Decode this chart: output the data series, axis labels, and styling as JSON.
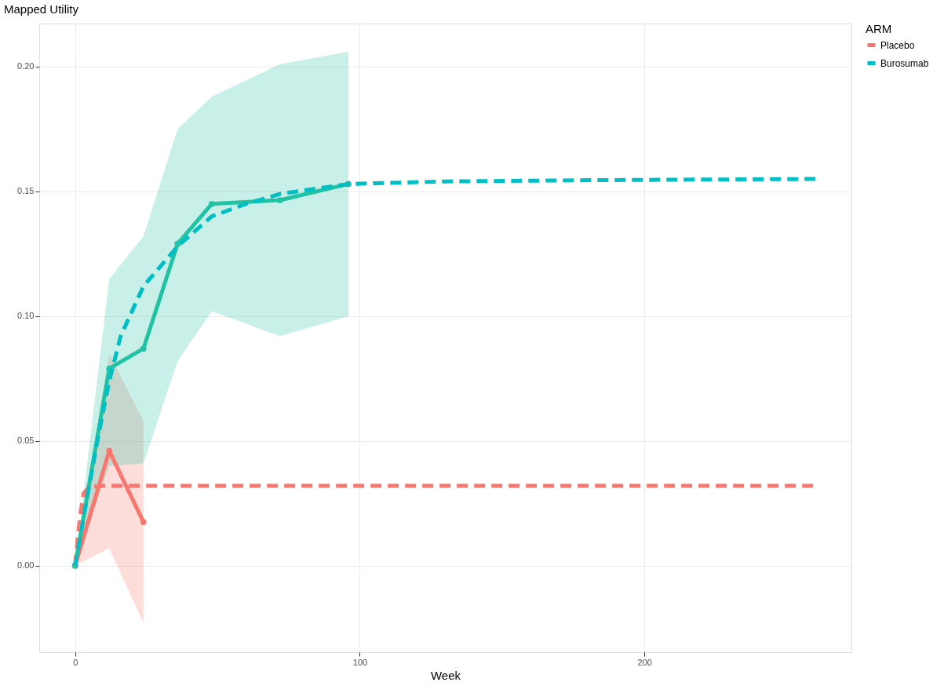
{
  "chart_data": {
    "type": "line",
    "xlabel": "Week",
    "ylabel": "Mapped Utility",
    "legend_title": "ARM",
    "legend": "right",
    "grid": true,
    "xlim": [
      -12.6,
      272.7
    ],
    "xticks": [
      0,
      100,
      200
    ],
    "ylim": [
      -0.0347,
      0.2173
    ],
    "yticks": [
      {
        "value": 0,
        "label": "0.00"
      },
      0.05,
      {
        "value": 0.1,
        "label": "0.10"
      },
      0.15,
      {
        "value": 0.2,
        "label": "0.20"
      }
    ],
    "series": [
      {
        "color": "#f8766d",
        "line_style": "solid",
        "marker": "circle",
        "x": [
          0,
          12,
          24
        ],
        "values": [
          0.0,
          0.046,
          0.0175
        ],
        "lower": [
          0.0,
          0.007,
          -0.023
        ],
        "upper": [
          0.0,
          0.085,
          0.058
        ]
      },
      {
        "color": "#22c2a4",
        "line_style": "solid",
        "marker": "circle",
        "x": [
          0,
          12,
          24,
          36,
          48,
          72,
          96
        ],
        "values": [
          0.0,
          0.079,
          0.087,
          0.129,
          0.145,
          0.1465,
          0.153
        ],
        "lower": [
          0.0,
          0.04,
          0.041,
          0.082,
          0.102,
          0.092,
          0.1
        ],
        "upper": [
          0.0,
          0.115,
          0.132,
          0.175,
          0.188,
          0.201,
          0.206
        ]
      },
      {
        "name": "Placebo",
        "color": "#f8766d",
        "line_style": "dashed",
        "marker": "none",
        "x": [
          0,
          1,
          2,
          3,
          5,
          10,
          50,
          100,
          260
        ],
        "values": [
          0.0,
          0.012,
          0.022,
          0.029,
          0.0315,
          0.032,
          0.032,
          0.032,
          0.032
        ]
      },
      {
        "name": "Burosumab",
        "color": "#00bfc4",
        "line_style": "dashed",
        "marker": "none",
        "x": [
          0,
          4,
          8,
          12,
          16,
          24,
          36,
          48,
          60,
          72,
          84,
          96,
          130,
          180,
          260
        ],
        "values": [
          0.0,
          0.026,
          0.051,
          0.074,
          0.092,
          0.112,
          0.128,
          0.14,
          0.145,
          0.149,
          0.151,
          0.153,
          0.154,
          0.1545,
          0.155
        ]
      }
    ]
  }
}
